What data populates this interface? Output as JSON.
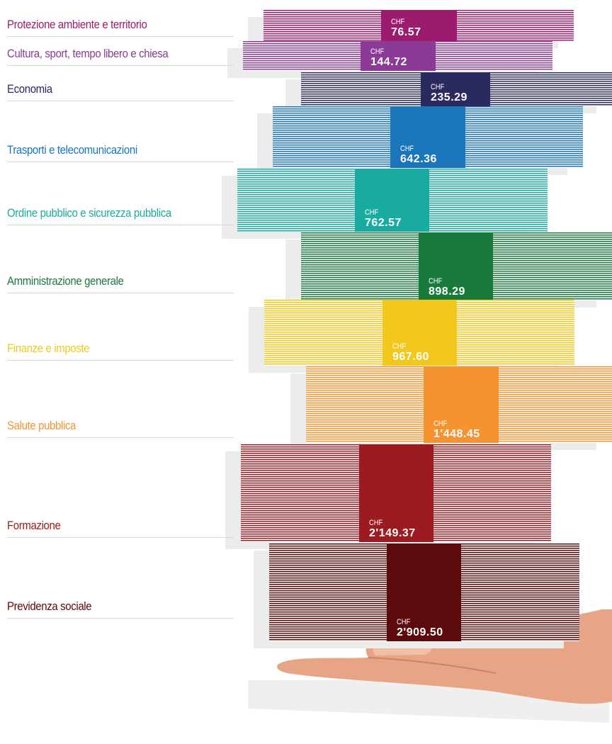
{
  "currency": "CHF",
  "items": [
    {
      "label": "Protezione ambiente e territorio",
      "amount": "76.57",
      "color": "#9c1b6f"
    },
    {
      "label": "Cultura, sport, tempo libero e chiesa",
      "amount": "144.72",
      "color": "#8b3a96"
    },
    {
      "label": "Economia",
      "amount": "235.29",
      "color": "#2b2a5e"
    },
    {
      "label": "Trasporti e telecomunicazioni",
      "amount": "642.36",
      "color": "#1a75bb"
    },
    {
      "label": "Ordine pubblico e sicurezza pubblica",
      "amount": "762.57",
      "color": "#1aaba0"
    },
    {
      "label": "Amministrazione generale",
      "amount": "898.29",
      "color": "#1a7a3c"
    },
    {
      "label": "Finanze e imposte",
      "amount": "967.60",
      "color": "#f2c81f"
    },
    {
      "label": "Salute pubblica",
      "amount": "1'448.45",
      "color": "#f59331"
    },
    {
      "label": "Formazione",
      "amount": "2'149.37",
      "color": "#9b1b20"
    },
    {
      "label": "Previdenza sociale",
      "amount": "2'909.50",
      "color": "#5c0a0c"
    }
  ]
}
